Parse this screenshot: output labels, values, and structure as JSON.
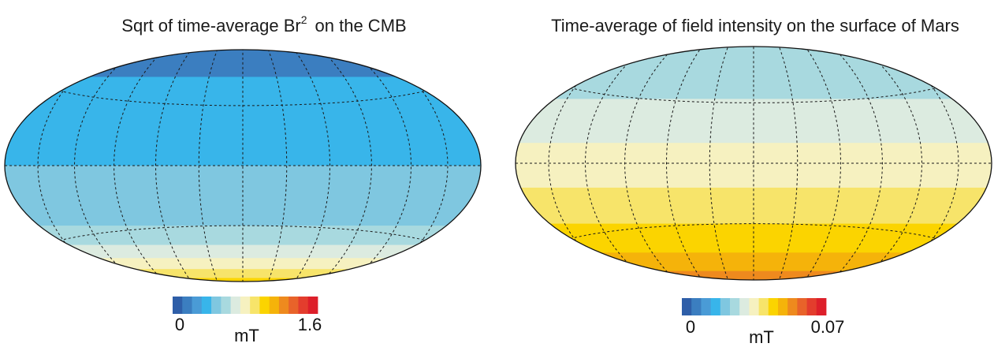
{
  "palette": [
    "#2e5ea8",
    "#3b7ec0",
    "#4a9bd6",
    "#38b5ea",
    "#7fc7e0",
    "#a8d9df",
    "#dcebe0",
    "#f6f1c0",
    "#f7e46a",
    "#fbd400",
    "#f5b30a",
    "#ee8a1e",
    "#e8632a",
    "#e33d2d",
    "#dd1f2a"
  ],
  "chart_data": [
    {
      "type": "heatmap",
      "projection": "Hammer-Aitoff (global map)",
      "title_main": "Sqrt of time-average Br",
      "title_sup": "2",
      "title_tail": "on the CMB",
      "colorbar": {
        "min_label": "0",
        "max_label": "1.6",
        "unit": "mT",
        "range": [
          0,
          1.6
        ],
        "levels": 15
      },
      "latitude_bands": [
        {
          "lat_top": 90,
          "lat_bottom": 75,
          "level": 3
        },
        {
          "lat_top": 75,
          "lat_bottom": 45,
          "level": 1
        },
        {
          "lat_top": 45,
          "lat_bottom": 0,
          "level": 3
        },
        {
          "lat_top": 0,
          "lat_bottom": -30,
          "level": 4
        },
        {
          "lat_top": -30,
          "lat_bottom": -40,
          "level": 5
        },
        {
          "lat_top": -40,
          "lat_bottom": -47,
          "level": 6
        },
        {
          "lat_top": -47,
          "lat_bottom": -53,
          "level": 7
        },
        {
          "lat_top": -53,
          "lat_bottom": -58,
          "level": 8
        },
        {
          "lat_top": -58,
          "lat_bottom": -63,
          "level": 9
        },
        {
          "lat_top": -63,
          "lat_bottom": -68,
          "level": 10
        },
        {
          "lat_top": -68,
          "lat_bottom": -72,
          "level": 11
        },
        {
          "lat_top": -72,
          "lat_bottom": -76,
          "level": 12
        },
        {
          "lat_top": -76,
          "lat_bottom": -80,
          "level": 13
        },
        {
          "lat_top": -80,
          "lat_bottom": -90,
          "level": 14
        }
      ]
    },
    {
      "type": "heatmap",
      "projection": "Hammer-Aitoff (global map)",
      "title": "Time-average of field intensity on the surface of Mars",
      "colorbar": {
        "min_label": "0",
        "max_label": "0.07",
        "unit": "mT",
        "range": [
          0,
          0.07
        ],
        "levels": 15
      },
      "latitude_bands": [
        {
          "lat_top": 90,
          "lat_bottom": 62,
          "level": 4
        },
        {
          "lat_top": 62,
          "lat_bottom": 32,
          "level": 5
        },
        {
          "lat_top": 32,
          "lat_bottom": 10,
          "level": 6
        },
        {
          "lat_top": 10,
          "lat_bottom": -12,
          "level": 7
        },
        {
          "lat_top": -12,
          "lat_bottom": -30,
          "level": 8
        },
        {
          "lat_top": -30,
          "lat_bottom": -45,
          "level": 9
        },
        {
          "lat_top": -45,
          "lat_bottom": -55,
          "level": 10
        },
        {
          "lat_top": -55,
          "lat_bottom": -63,
          "level": 11
        },
        {
          "lat_top": -63,
          "lat_bottom": -70,
          "level": 12
        },
        {
          "lat_top": -70,
          "lat_bottom": -77,
          "level": 13
        },
        {
          "lat_top": -77,
          "lat_bottom": -90,
          "level": 14
        }
      ]
    }
  ]
}
